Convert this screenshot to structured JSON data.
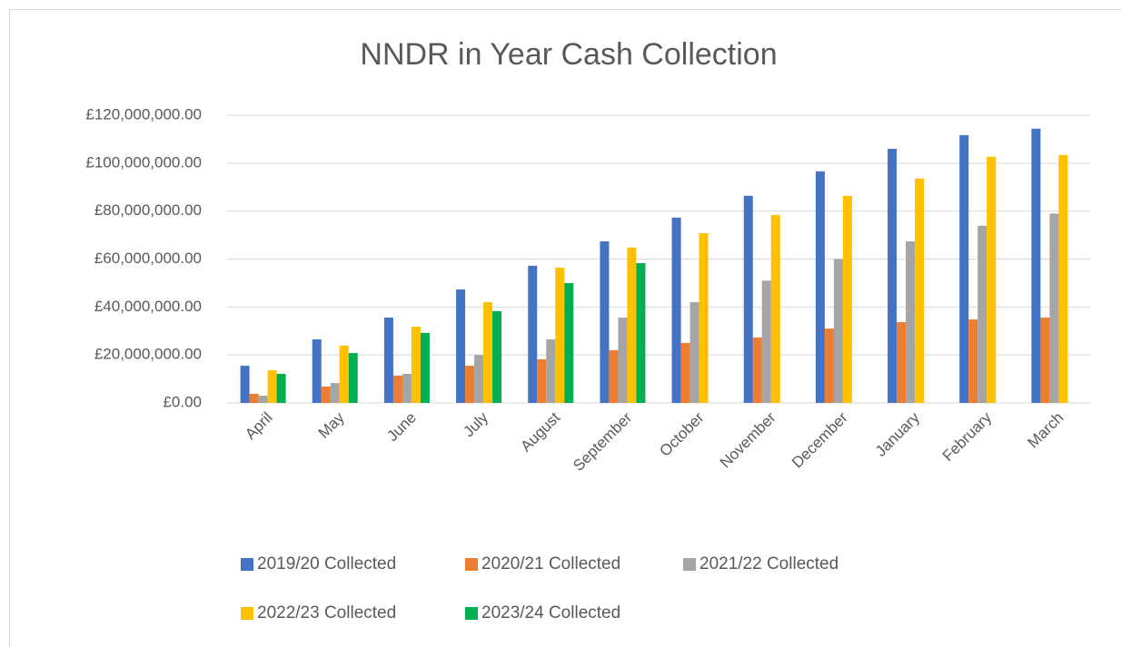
{
  "chart_data": {
    "type": "bar",
    "title": "NNDR in Year Cash Collection",
    "categories": [
      "April",
      "May",
      "June",
      "July",
      "August",
      "September",
      "October",
      "November",
      "December",
      "January",
      "February",
      "March"
    ],
    "series": [
      {
        "name": "2019/20 Collected",
        "color": "#4472c4",
        "values": [
          15500000,
          26500000,
          35600000,
          47300000,
          57200000,
          67400000,
          77300000,
          86400000,
          96600000,
          106000000,
          111700000,
          114400000
        ]
      },
      {
        "name": "2020/21 Collected",
        "color": "#ed7d31",
        "values": [
          3800000,
          6800000,
          11400000,
          15500000,
          18200000,
          22000000,
          25000000,
          27300000,
          31000000,
          33700000,
          34800000,
          35600000
        ]
      },
      {
        "name": "2021/22 Collected",
        "color": "#a5a5a5",
        "values": [
          3000000,
          8300000,
          12100000,
          20000000,
          26500000,
          35600000,
          42000000,
          51000000,
          60000000,
          67400000,
          73900000,
          79000000
        ]
      },
      {
        "name": "2022/23 Collected",
        "color": "#ffc000",
        "values": [
          13600000,
          23900000,
          31800000,
          42000000,
          56400000,
          64800000,
          70800000,
          78400000,
          86400000,
          93600000,
          102700000,
          103400000
        ]
      },
      {
        "name": "2023/24 Collected",
        "color": "#00b050",
        "values": [
          12100000,
          20800000,
          29200000,
          38300000,
          50000000,
          58300000,
          null,
          null,
          null,
          null,
          null,
          null
        ]
      }
    ],
    "ylim": [
      0,
      120000000
    ],
    "yticks": [
      {
        "value": 0,
        "label": "£0.00"
      },
      {
        "value": 20000000,
        "label": "£20,000,000.00"
      },
      {
        "value": 40000000,
        "label": "£40,000,000.00"
      },
      {
        "value": 60000000,
        "label": "£60,000,000.00"
      },
      {
        "value": 80000000,
        "label": "£80,000,000.00"
      },
      {
        "value": 100000000,
        "label": "£100,000,000.00"
      },
      {
        "value": 120000000,
        "label": "£120,000,000.00"
      }
    ],
    "grid": true,
    "legend": "bottom"
  }
}
